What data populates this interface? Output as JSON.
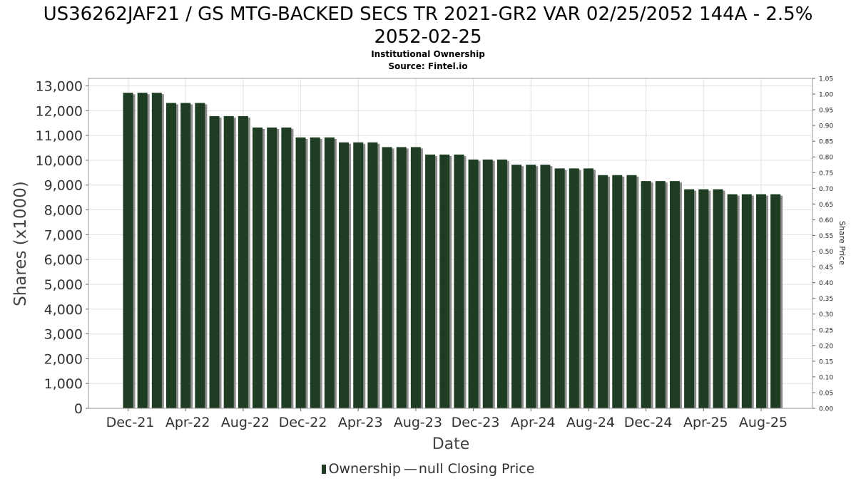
{
  "header": {
    "title_line1": "US36262JAF21 / GS MTG-BACKED SECS TR 2021-GR2 VAR 02/25/2052 144A - 2.5%",
    "title_line2": "2052-02-25",
    "subtitle": "Institutional Ownership",
    "source": "Source: Fintel.io"
  },
  "legend": {
    "ownership_label": "Ownership",
    "price_label": "null Closing Price"
  },
  "colors": {
    "bar": "#1e3d22",
    "bar_shadow": "#8c8c8c",
    "grid": "#e0e0e0",
    "axis": "#666666"
  },
  "chart_data": {
    "type": "bar",
    "xlabel": "Date",
    "ylabel": "Shares (x1000)",
    "y2label": "Share Price",
    "ylim": [
      0,
      13300
    ],
    "y2lim": [
      0,
      1.05
    ],
    "yticks": [
      "0",
      "1,000",
      "2,000",
      "3,000",
      "4,000",
      "5,000",
      "6,000",
      "7,000",
      "8,000",
      "9,000",
      "10,000",
      "11,000",
      "12,000",
      "13,000"
    ],
    "y2ticks": [
      "0.00",
      "0.05",
      "0.10",
      "0.15",
      "0.20",
      "0.25",
      "0.30",
      "0.35",
      "0.40",
      "0.45",
      "0.50",
      "0.55",
      "0.60",
      "0.65",
      "0.70",
      "0.75",
      "0.80",
      "0.85",
      "0.90",
      "0.95",
      "1.00",
      "1.05"
    ],
    "xticks": [
      "Dec-21",
      "Apr-22",
      "Aug-22",
      "Dec-22",
      "Apr-23",
      "Aug-23",
      "Dec-23",
      "Apr-24",
      "Aug-24",
      "Dec-24",
      "Apr-25",
      "Aug-25"
    ],
    "grid": true,
    "legend_position": "bottom",
    "series": [
      {
        "name": "Ownership",
        "values": [
          12720,
          12720,
          12720,
          12310,
          12310,
          12310,
          11780,
          11780,
          11780,
          11320,
          11320,
          11320,
          10920,
          10920,
          10920,
          10720,
          10720,
          10720,
          10530,
          10530,
          10530,
          10230,
          10230,
          10230,
          10030,
          10030,
          10030,
          9820,
          9820,
          9820,
          9670,
          9670,
          9670,
          9400,
          9400,
          9400,
          9160,
          9160,
          9160,
          8830,
          8830,
          8830,
          8630,
          8630,
          8630,
          8630
        ]
      }
    ]
  }
}
